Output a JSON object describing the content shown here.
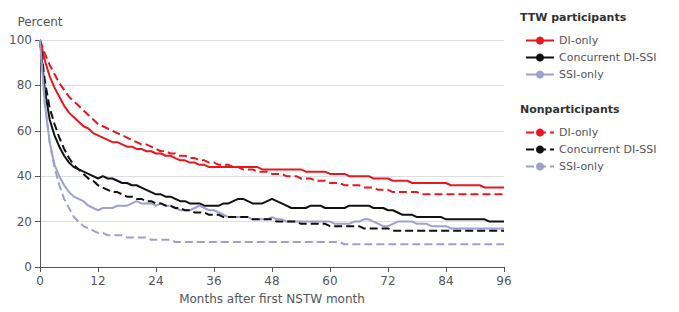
{
  "chart_data": {
    "type": "line",
    "title_y": "Percent",
    "xlabel": "Months after first NSTW month",
    "xlim": [
      0,
      96
    ],
    "ylim": [
      0,
      100
    ],
    "xticks": [
      0,
      12,
      24,
      36,
      48,
      60,
      72,
      84,
      96
    ],
    "yticks": [
      0,
      20,
      40,
      60,
      80,
      100
    ],
    "grid": "y",
    "legend": "right",
    "x": [
      0,
      1,
      2,
      3,
      4,
      5,
      6,
      7,
      8,
      9,
      10,
      11,
      12,
      13,
      14,
      15,
      16,
      17,
      18,
      19,
      20,
      21,
      22,
      23,
      24,
      25,
      26,
      27,
      28,
      29,
      30,
      31,
      32,
      33,
      34,
      35,
      36,
      37,
      38,
      39,
      40,
      41,
      42,
      43,
      44,
      45,
      46,
      47,
      48,
      49,
      50,
      51,
      52,
      53,
      54,
      55,
      56,
      57,
      58,
      59,
      60,
      61,
      62,
      63,
      64,
      65,
      66,
      67,
      68,
      69,
      70,
      71,
      72,
      73,
      74,
      75,
      76,
      77,
      78,
      79,
      80,
      81,
      82,
      83,
      84,
      85,
      86,
      87,
      88,
      89,
      90,
      91,
      92,
      93,
      94,
      95,
      96
    ],
    "series": [
      {
        "name": "DI-only",
        "group": "TTW participants",
        "color": "#e8181e",
        "line_style": "solid",
        "values": [
          100,
          91,
          84,
          79,
          75,
          71,
          68,
          66,
          64,
          62,
          61,
          59,
          58,
          57,
          56,
          55,
          55,
          54,
          53,
          53,
          52,
          52,
          51,
          51,
          50,
          50,
          49,
          49,
          48,
          47,
          47,
          46,
          46,
          45,
          45,
          44,
          44,
          44,
          44,
          44,
          44,
          44,
          44,
          44,
          44,
          44,
          43,
          43,
          43,
          43,
          43,
          43,
          43,
          43,
          43,
          42,
          42,
          42,
          42,
          42,
          41,
          41,
          41,
          41,
          40,
          40,
          40,
          40,
          40,
          39,
          39,
          39,
          39,
          38,
          38,
          38,
          38,
          37,
          37,
          37,
          37,
          37,
          37,
          37,
          37,
          36,
          36,
          36,
          36,
          36,
          36,
          36,
          35,
          35,
          35,
          35,
          35
        ]
      },
      {
        "name": "Concurrent DI-SSI",
        "group": "TTW participants",
        "color": "#111111",
        "line_style": "solid",
        "values": [
          100,
          78,
          65,
          58,
          53,
          49,
          46,
          44,
          43,
          42,
          41,
          40,
          39,
          40,
          39,
          39,
          38,
          37,
          37,
          36,
          36,
          35,
          34,
          33,
          32,
          32,
          31,
          31,
          30,
          29,
          29,
          28,
          28,
          28,
          27,
          27,
          27,
          27,
          28,
          28,
          29,
          30,
          30,
          29,
          28,
          28,
          28,
          29,
          30,
          29,
          28,
          27,
          26,
          26,
          26,
          26,
          27,
          27,
          27,
          26,
          26,
          26,
          26,
          26,
          27,
          27,
          27,
          27,
          27,
          26,
          26,
          26,
          25,
          25,
          24,
          23,
          23,
          23,
          22,
          22,
          22,
          22,
          22,
          22,
          21,
          21,
          21,
          21,
          21,
          21,
          21,
          21,
          21,
          20,
          20,
          20,
          20
        ]
      },
      {
        "name": "SSI-only",
        "group": "TTW participants",
        "color": "#a0a0d0",
        "line_style": "solid",
        "values": [
          100,
          72,
          55,
          45,
          40,
          36,
          33,
          31,
          30,
          29,
          27,
          26,
          25,
          26,
          26,
          26,
          27,
          27,
          27,
          28,
          29,
          28,
          28,
          28,
          27,
          28,
          27,
          27,
          26,
          25,
          25,
          25,
          26,
          27,
          26,
          25,
          25,
          24,
          23,
          22,
          22,
          22,
          22,
          22,
          21,
          21,
          21,
          21,
          22,
          21,
          21,
          20,
          20,
          20,
          20,
          20,
          20,
          20,
          20,
          20,
          20,
          19,
          19,
          19,
          19,
          20,
          20,
          21,
          21,
          20,
          19,
          18,
          18,
          19,
          20,
          20,
          20,
          20,
          19,
          19,
          19,
          18,
          18,
          18,
          18,
          17,
          17,
          17,
          17,
          17,
          17,
          17,
          17,
          17,
          17,
          17,
          17
        ]
      },
      {
        "name": "DI-only ",
        "group": "Nonparticipants",
        "color": "#e8181e",
        "line_style": "dashed",
        "values": [
          100,
          94,
          89,
          85,
          81,
          78,
          75,
          73,
          71,
          69,
          67,
          65,
          63,
          62,
          61,
          60,
          59,
          58,
          57,
          56,
          55,
          54,
          54,
          53,
          52,
          51,
          51,
          50,
          50,
          49,
          49,
          48,
          48,
          47,
          47,
          46,
          46,
          45,
          45,
          45,
          44,
          44,
          43,
          43,
          43,
          42,
          42,
          42,
          41,
          41,
          41,
          40,
          40,
          40,
          39,
          39,
          39,
          38,
          38,
          38,
          37,
          37,
          37,
          36,
          36,
          36,
          36,
          35,
          35,
          35,
          34,
          34,
          34,
          33,
          33,
          33,
          33,
          33,
          33,
          32,
          32,
          32,
          32,
          32,
          32,
          32,
          32,
          32,
          32,
          32,
          32,
          32,
          32,
          32,
          32,
          32,
          32
        ]
      },
      {
        "name": "Concurrent DI-SSI ",
        "group": "Nonparticipants",
        "color": "#111111",
        "line_style": "dashed",
        "values": [
          100,
          82,
          70,
          63,
          57,
          52,
          48,
          45,
          43,
          41,
          39,
          38,
          36,
          35,
          34,
          33,
          33,
          32,
          31,
          31,
          30,
          30,
          29,
          29,
          28,
          28,
          27,
          27,
          26,
          26,
          25,
          25,
          24,
          24,
          24,
          23,
          23,
          23,
          22,
          22,
          22,
          22,
          22,
          22,
          21,
          21,
          21,
          21,
          21,
          20,
          20,
          20,
          20,
          20,
          19,
          19,
          19,
          19,
          19,
          19,
          18,
          18,
          18,
          18,
          18,
          18,
          18,
          17,
          17,
          17,
          17,
          17,
          17,
          16,
          16,
          16,
          16,
          16,
          16,
          16,
          16,
          16,
          16,
          16,
          16,
          16,
          16,
          16,
          16,
          16,
          16,
          16,
          16,
          16,
          16,
          16,
          16
        ]
      },
      {
        "name": "SSI-only ",
        "group": "Nonparticipants",
        "color": "#a0a0d0",
        "line_style": "dashed",
        "values": [
          100,
          72,
          55,
          44,
          36,
          30,
          26,
          22,
          20,
          18,
          17,
          16,
          15,
          15,
          14,
          14,
          14,
          14,
          13,
          13,
          13,
          13,
          13,
          12,
          12,
          12,
          12,
          12,
          11,
          11,
          11,
          11,
          11,
          11,
          11,
          11,
          11,
          11,
          11,
          11,
          11,
          11,
          11,
          11,
          11,
          11,
          11,
          11,
          11,
          11,
          11,
          11,
          11,
          11,
          11,
          11,
          11,
          11,
          11,
          11,
          11,
          11,
          11,
          10,
          10,
          10,
          10,
          10,
          10,
          10,
          10,
          10,
          10,
          10,
          10,
          10,
          10,
          10,
          10,
          10,
          10,
          10,
          10,
          10,
          10,
          10,
          10,
          10,
          10,
          10,
          10,
          10,
          10,
          10,
          10,
          10,
          10
        ]
      }
    ]
  }
}
